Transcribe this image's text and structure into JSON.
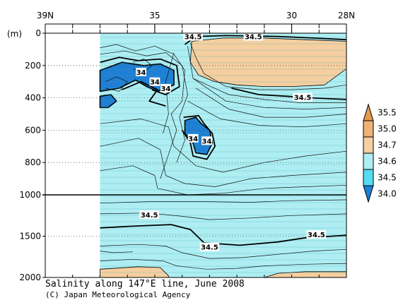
{
  "chart_data": {
    "type": "heatmap",
    "title": "Salinity along 147°E line, June 2008",
    "credit": "(C) Japan Meteorological Agency",
    "y_unit_label": "(m)",
    "x_ticks": [
      {
        "lat": 39,
        "label": "39N"
      },
      {
        "lat": 35,
        "label": "35"
      },
      {
        "lat": 30,
        "label": "30"
      },
      {
        "lat": 28,
        "label": "28N"
      }
    ],
    "x_range_lat": [
      39,
      28
    ],
    "data_start_lat": 37,
    "y_ticks_upper": [
      0,
      200,
      400,
      600,
      800,
      1000
    ],
    "y_ticks_lower": [
      1500,
      2000
    ],
    "y_break_depth": 1000,
    "y_range_depth": [
      0,
      2000
    ],
    "legend": {
      "levels": [
        "35.5",
        "35.0",
        "34.7",
        "34.6",
        "34.5",
        "34.0"
      ],
      "colors": [
        "#e39b4f",
        "#edb378",
        "#f5cfa0",
        "#aeeef2",
        "#56dcf0",
        "#1f7fd4"
      ]
    },
    "contour_labels": [
      {
        "text": "34.5",
        "lat": 33.6,
        "depth": 20
      },
      {
        "text": "34.5",
        "lat": 31.4,
        "depth": 20
      },
      {
        "text": "34",
        "lat": 35.5,
        "depth": 240
      },
      {
        "text": "34",
        "lat": 35.0,
        "depth": 300
      },
      {
        "text": "34",
        "lat": 34.6,
        "depth": 340
      },
      {
        "text": "34.5",
        "lat": 29.6,
        "depth": 395
      },
      {
        "text": "34",
        "lat": 33.6,
        "depth": 650
      },
      {
        "text": "34",
        "lat": 33.1,
        "depth": 665
      },
      {
        "text": "34.5",
        "lat": 35.2,
        "depth": 1240
      },
      {
        "text": "34.5",
        "lat": 33.0,
        "depth": 1630
      },
      {
        "text": "34.5",
        "lat": 29.1,
        "depth": 1480
      }
    ],
    "fills": [
      {
        "name": "high-salinity-core",
        "level": "34.7",
        "points": [
          [
            33.65,
            50
          ],
          [
            32.5,
            30
          ],
          [
            31,
            30
          ],
          [
            29.5,
            40
          ],
          [
            28,
            50
          ],
          [
            28,
            220
          ],
          [
            28.8,
            320
          ],
          [
            30,
            330
          ],
          [
            31,
            330
          ],
          [
            32,
            320
          ],
          [
            32.8,
            300
          ],
          [
            33.4,
            260
          ],
          [
            33.7,
            180
          ]
        ]
      },
      {
        "name": "low-salinity-patch-1",
        "level": "34.0",
        "points": [
          [
            37,
            230
          ],
          [
            36.2,
            180
          ],
          [
            35.4,
            200
          ],
          [
            34.8,
            190
          ],
          [
            34.3,
            230
          ],
          [
            34.3,
            320
          ],
          [
            34.9,
            360
          ],
          [
            35.3,
            330
          ],
          [
            35.7,
            290
          ],
          [
            36.3,
            340
          ],
          [
            37,
            360
          ]
        ]
      },
      {
        "name": "low-salinity-patch-2",
        "level": "34.0",
        "points": [
          [
            37,
            390
          ],
          [
            36.6,
            380
          ],
          [
            36.4,
            420
          ],
          [
            36.7,
            460
          ],
          [
            37,
            460
          ]
        ]
      },
      {
        "name": "low-salinity-patch-3",
        "level": "34.0",
        "points": [
          [
            33.9,
            540
          ],
          [
            33.5,
            520
          ],
          [
            33.3,
            560
          ],
          [
            33.0,
            600
          ],
          [
            32.9,
            680
          ],
          [
            33.1,
            750
          ],
          [
            33.5,
            740
          ],
          [
            33.6,
            680
          ],
          [
            33.9,
            620
          ]
        ]
      },
      {
        "name": "deep-high-salinity-1",
        "level": "34.7",
        "points": [
          [
            37,
            1900
          ],
          [
            35.6,
            1870
          ],
          [
            34.8,
            1880
          ],
          [
            34.5,
            1980
          ],
          [
            34.5,
            2000
          ],
          [
            37,
            2000
          ]
        ]
      },
      {
        "name": "deep-high-salinity-2",
        "level": "34.7",
        "points": [
          [
            31,
            2000
          ],
          [
            30.5,
            1950
          ],
          [
            29.5,
            1930
          ],
          [
            28,
            1930
          ],
          [
            28,
            2000
          ]
        ]
      }
    ],
    "contours_thick": [
      [
        [
          37,
          180
        ],
        [
          36.3,
          150
        ],
        [
          35.6,
          170
        ],
        [
          34.8,
          160
        ],
        [
          34.2,
          200
        ],
        [
          34.1,
          330
        ],
        [
          34.6,
          380
        ],
        [
          35.1,
          350
        ]
      ],
      [
        [
          36.2,
          350
        ],
        [
          35.5,
          300
        ],
        [
          34.9,
          350
        ],
        [
          35.2,
          420
        ],
        [
          34.6,
          450
        ]
      ],
      [
        [
          33.95,
          520
        ],
        [
          33.4,
          510
        ],
        [
          33.2,
          560
        ],
        [
          32.9,
          620
        ],
        [
          32.8,
          700
        ],
        [
          33.1,
          780
        ],
        [
          33.6,
          760
        ],
        [
          33.7,
          680
        ],
        [
          34.0,
          600
        ]
      ],
      [
        [
          37,
          1400
        ],
        [
          35.9,
          1380
        ],
        [
          34.4,
          1360
        ],
        [
          33.7,
          1420
        ],
        [
          33.2,
          1580
        ],
        [
          31.9,
          1610
        ],
        [
          30.5,
          1570
        ],
        [
          29.5,
          1520
        ],
        [
          28,
          1490
        ]
      ],
      [
        [
          33.9,
          70
        ],
        [
          33.5,
          20
        ],
        [
          32.4,
          15
        ],
        [
          30.5,
          20
        ],
        [
          29.2,
          30
        ],
        [
          28,
          40
        ]
      ],
      [
        [
          32.2,
          340
        ],
        [
          31.2,
          380
        ],
        [
          30.2,
          390
        ],
        [
          29.3,
          400
        ],
        [
          28,
          410
        ]
      ]
    ],
    "contours_thin": [
      [
        [
          37,
          90
        ],
        [
          36.4,
          70
        ],
        [
          35.7,
          110
        ],
        [
          35.0,
          80
        ],
        [
          34.3,
          130
        ],
        [
          33.9,
          230
        ],
        [
          34.0,
          420
        ],
        [
          34.4,
          500
        ],
        [
          34.2,
          600
        ],
        [
          34.5,
          750
        ],
        [
          34.8,
          900
        ]
      ],
      [
        [
          37,
          130
        ],
        [
          36.1,
          110
        ],
        [
          35.3,
          140
        ],
        [
          34.6,
          120
        ],
        [
          34.0,
          200
        ],
        [
          33.8,
          380
        ],
        [
          34.1,
          520
        ],
        [
          33.9,
          660
        ],
        [
          34.2,
          800
        ]
      ],
      [
        [
          33.7,
          60
        ],
        [
          33.5,
          150
        ],
        [
          33.2,
          250
        ],
        [
          32.4,
          330
        ],
        [
          31.2,
          350
        ],
        [
          30.0,
          350
        ],
        [
          28.8,
          340
        ],
        [
          28,
          320
        ]
      ],
      [
        [
          33.8,
          80
        ],
        [
          33.6,
          280
        ],
        [
          32.3,
          380
        ],
        [
          31.0,
          410
        ],
        [
          29.7,
          430
        ],
        [
          28,
          430
        ]
      ],
      [
        [
          33.6,
          280
        ],
        [
          32.4,
          420
        ],
        [
          31.0,
          460
        ],
        [
          29.5,
          470
        ],
        [
          28,
          460
        ]
      ],
      [
        [
          33.5,
          340
        ],
        [
          32.3,
          470
        ],
        [
          31.0,
          520
        ],
        [
          29.5,
          520
        ],
        [
          28,
          500
        ]
      ],
      [
        [
          33.8,
          420
        ],
        [
          32.6,
          530
        ],
        [
          31.2,
          570
        ],
        [
          29.6,
          580
        ],
        [
          28,
          560
        ]
      ],
      [
        [
          37,
          560
        ],
        [
          35.5,
          530
        ],
        [
          34.5,
          580
        ],
        [
          34.3,
          700
        ],
        [
          33.5,
          820
        ],
        [
          32.5,
          860
        ],
        [
          31,
          800
        ],
        [
          29.5,
          760
        ],
        [
          28,
          730
        ]
      ],
      [
        [
          37,
          700
        ],
        [
          35.6,
          650
        ],
        [
          34.8,
          720
        ],
        [
          34.6,
          880
        ],
        [
          33.9,
          930
        ],
        [
          32.8,
          950
        ],
        [
          31.5,
          900
        ],
        [
          30,
          880
        ],
        [
          28,
          860
        ]
      ],
      [
        [
          37,
          850
        ],
        [
          35.8,
          820
        ],
        [
          35.0,
          880
        ],
        [
          34.9,
          960
        ],
        [
          33.8,
          1000
        ],
        [
          32.5,
          990
        ],
        [
          31.0,
          960
        ],
        [
          29.5,
          950
        ],
        [
          28,
          940
        ]
      ],
      [
        [
          37,
          1100
        ],
        [
          35.0,
          1080
        ],
        [
          33.5,
          1080
        ],
        [
          31.5,
          1090
        ],
        [
          30,
          1070
        ],
        [
          28,
          1060
        ]
      ],
      [
        [
          37,
          1230
        ],
        [
          35.2,
          1220
        ],
        [
          34.0,
          1260
        ],
        [
          33.0,
          1300
        ],
        [
          31.5,
          1280
        ],
        [
          30,
          1250
        ],
        [
          28,
          1230
        ]
      ],
      [
        [
          37,
          1620
        ],
        [
          35.6,
          1600
        ],
        [
          34.6,
          1620
        ],
        [
          34.0,
          1700
        ],
        [
          33.0,
          1770
        ],
        [
          31.8,
          1760
        ],
        [
          30.5,
          1720
        ],
        [
          29.2,
          1680
        ],
        [
          28,
          1660
        ]
      ],
      [
        [
          37,
          1800
        ],
        [
          35.8,
          1780
        ],
        [
          34.7,
          1800
        ],
        [
          34.2,
          1860
        ],
        [
          33.1,
          1900
        ],
        [
          32.0,
          1890
        ],
        [
          31.0,
          1860
        ],
        [
          29.5,
          1840
        ],
        [
          28,
          1830
        ]
      ],
      [
        [
          37,
          1680
        ],
        [
          36.5,
          1700
        ],
        [
          35.8,
          1690
        ]
      ],
      [
        [
          36.8,
          300
        ],
        [
          36.4,
          270
        ],
        [
          36.0,
          300
        ],
        [
          36.3,
          360
        ],
        [
          36.8,
          340
        ]
      ],
      [
        [
          35.8,
          180
        ],
        [
          35.4,
          160
        ],
        [
          35.1,
          200
        ],
        [
          35.4,
          240
        ],
        [
          35.8,
          220
        ]
      ],
      [
        [
          34.3,
          120
        ],
        [
          34.6,
          300
        ],
        [
          34.5,
          500
        ],
        [
          34.7,
          620
        ]
      ]
    ]
  }
}
